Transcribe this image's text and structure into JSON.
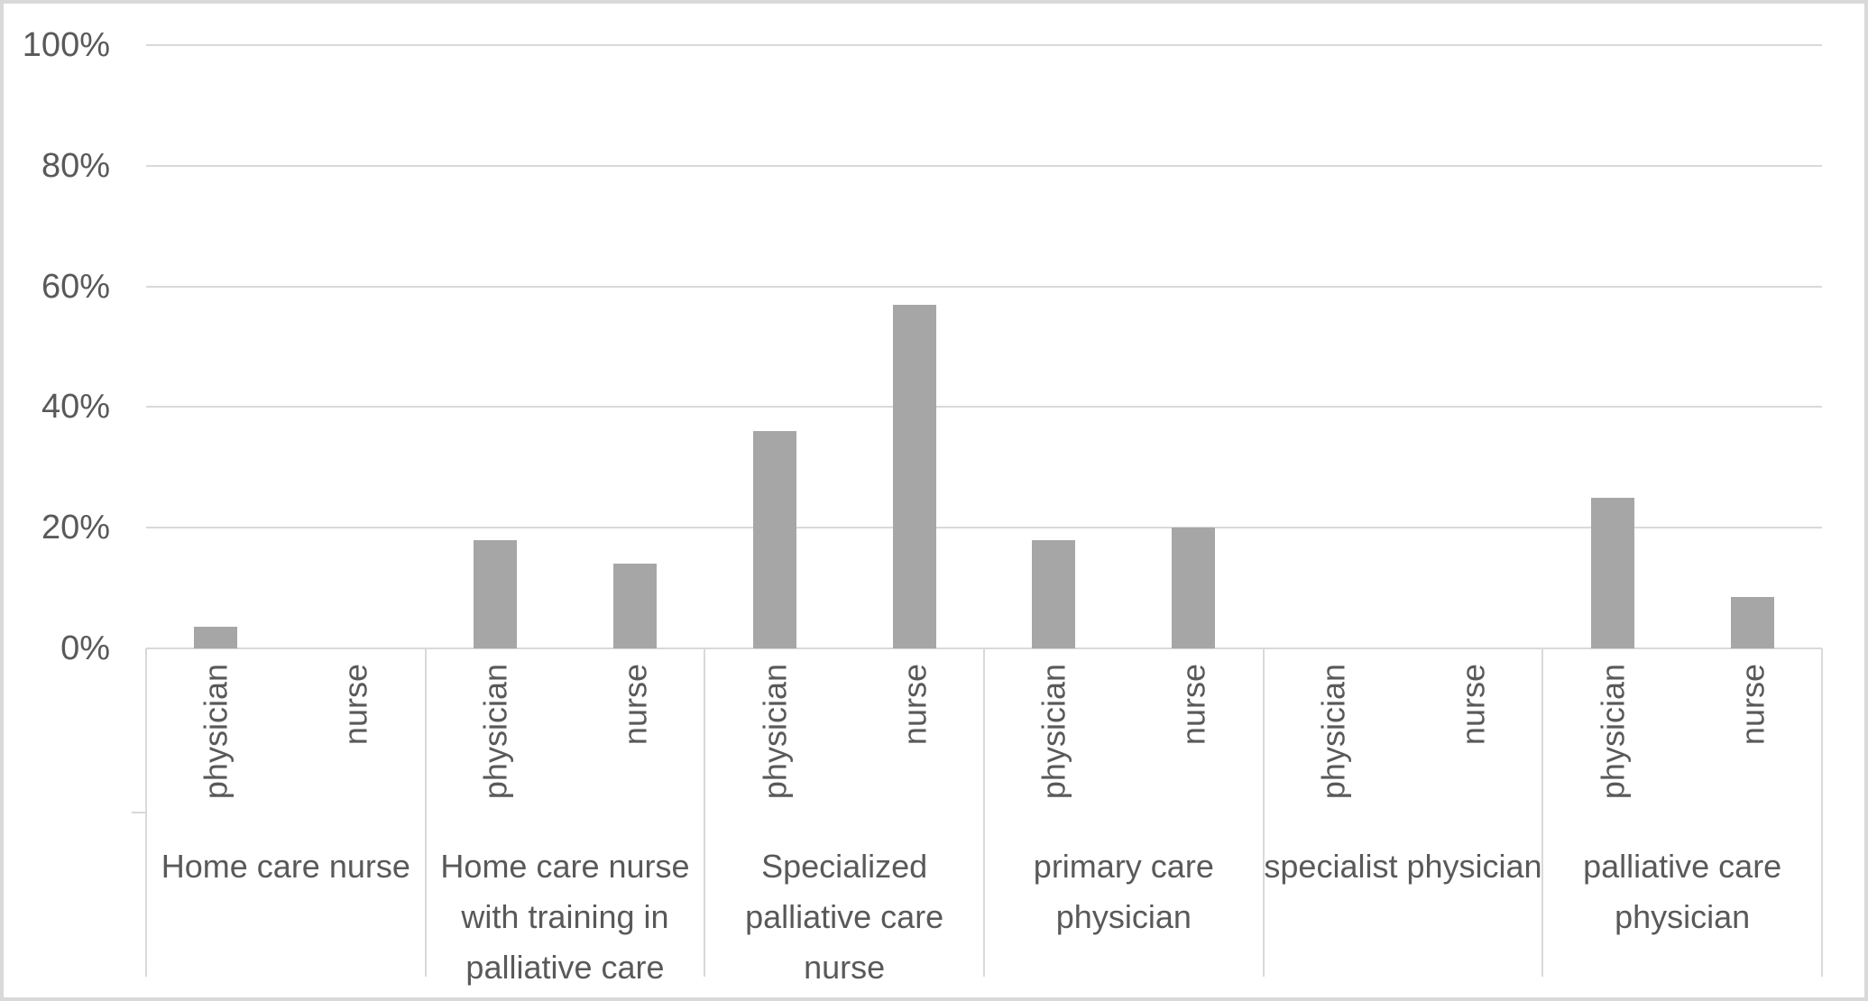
{
  "chart_data": {
    "type": "bar",
    "title": "",
    "xlabel": "",
    "ylabel": "",
    "ylim": [
      0,
      100
    ],
    "y_ticks": [
      "0%",
      "20%",
      "40%",
      "60%",
      "80%",
      "100%"
    ],
    "gridlines": true,
    "legend": "none",
    "bar_color": "#a6a6a6",
    "grid_color": "#d9d9d9",
    "text_color": "#595959",
    "groups": [
      {
        "label": "Home care nurse",
        "bars": [
          {
            "label": "physician",
            "value": 3.6
          },
          {
            "label": "nurse",
            "value": 0
          }
        ]
      },
      {
        "label": "Home care nurse with training in palliative care",
        "bars": [
          {
            "label": "physician",
            "value": 18
          },
          {
            "label": "nurse",
            "value": 14
          }
        ]
      },
      {
        "label": "Specialized palliative care nurse",
        "bars": [
          {
            "label": "physician",
            "value": 36
          },
          {
            "label": "nurse",
            "value": 57
          }
        ]
      },
      {
        "label": "primary care physician",
        "bars": [
          {
            "label": "physician",
            "value": 18
          },
          {
            "label": "nurse",
            "value": 20
          }
        ]
      },
      {
        "label": "specialist physician",
        "bars": [
          {
            "label": "physician",
            "value": 0
          },
          {
            "label": "nurse",
            "value": 0
          }
        ]
      },
      {
        "label": "palliative care physician",
        "bars": [
          {
            "label": "physician",
            "value": 25
          },
          {
            "label": "nurse",
            "value": 8.5
          }
        ]
      }
    ]
  }
}
